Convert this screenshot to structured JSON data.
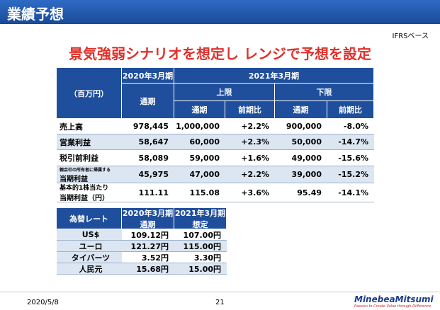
{
  "header": {
    "title": "業績予想",
    "basis": "IFRSベース"
  },
  "headline": "景気強弱シナリオを想定し レンジで予想を設定",
  "forecast_table": {
    "unit": "（百万円）",
    "fy2020": "2020年3月期",
    "fy2020_sub": "通期",
    "fy2021": "2021年3月期",
    "upper": "上限",
    "lower": "下限",
    "columns": [
      "通期",
      "前期比",
      "通期",
      "前期比"
    ],
    "rows": [
      {
        "label": [
          "売上高"
        ],
        "values": [
          "978,445",
          "1,000,000",
          "+2.2%",
          "900,000",
          "-8.0%"
        ]
      },
      {
        "label": [
          "営業利益"
        ],
        "values": [
          "58,647",
          "60,000",
          "+2.3%",
          "50,000",
          "-14.7%"
        ]
      },
      {
        "label": [
          "税引前利益"
        ],
        "values": [
          "58,089",
          "59,000",
          "+1.6%",
          "49,000",
          "-15.6%"
        ]
      },
      {
        "label": [
          "親会社の所有者に帰属する",
          "当期利益"
        ],
        "values": [
          "45,975",
          "47,000",
          "+2.2%",
          "39,000",
          "-15.2%"
        ]
      },
      {
        "label": [
          "基本的1株当たり",
          "当期利益（円）"
        ],
        "values": [
          "111.11",
          "115.08",
          "+3.6%",
          "95.49",
          "-14.1%"
        ]
      }
    ]
  },
  "fx_table": {
    "title": "為替レート",
    "fy2020": "2020年3月期",
    "fy2020_sub": "通期",
    "fy2021": "2021年3月期",
    "fy2021_sub": "想定",
    "rows": [
      [
        "US$",
        "109.12円",
        "107.00円"
      ],
      [
        "ユーロ",
        "121.27円",
        "115.00円"
      ],
      [
        "タイバーツ",
        "3.52円",
        "3.30円"
      ],
      [
        "人民元",
        "15.68円",
        "15.00円"
      ]
    ]
  },
  "footer": {
    "date": "2020/5/8",
    "page": "21",
    "brand": "MinebeaMitsumi",
    "tagline": "Passion to Create Value through Difference"
  }
}
